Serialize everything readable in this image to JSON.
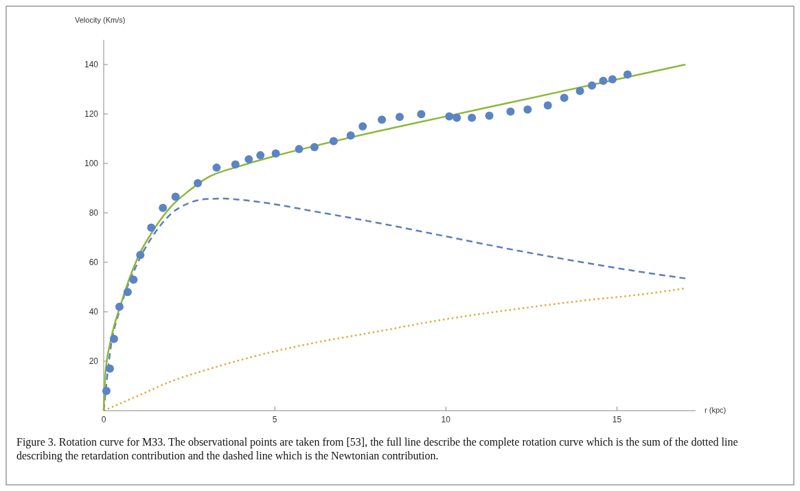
{
  "chart_data": {
    "type": "line",
    "ylabel": "Velocity (Km/s)",
    "xlabel": "r (kpc)",
    "xlim": [
      0,
      17.3
    ],
    "ylim": [
      0,
      150
    ],
    "xticks": [
      0,
      5,
      10,
      15
    ],
    "yticks": [
      20,
      40,
      60,
      80,
      100,
      120,
      140
    ],
    "grid": false,
    "annotations": [
      "Figure 3. Rotation curve for M33. The observational points are taken from [53], the full line describe the complete rotation curve which is the sum of the dotted line describing the retardation contribution and the dashed line which is the Newtonian contribution."
    ],
    "series": [
      {
        "line_style": "dotted",
        "marker": "none",
        "color": "#e3a93b",
        "x": [
          0,
          1,
          2,
          3,
          4,
          5,
          6,
          8,
          10,
          12,
          14,
          16,
          17
        ],
        "values": [
          0,
          6,
          12,
          16.5,
          20.5,
          24,
          27,
          32,
          37,
          41,
          44.5,
          47.5,
          49.5
        ]
      },
      {
        "line_style": "dashed",
        "marker": "none",
        "color": "#5b7fb8",
        "x": [
          0,
          0.2,
          0.5,
          1,
          1.5,
          2,
          2.5,
          3,
          3.5,
          4,
          5,
          6,
          8,
          10,
          12,
          14,
          16,
          17
        ],
        "values": [
          0,
          25,
          42,
          60,
          72,
          80,
          84,
          85.6,
          85.8,
          85.3,
          83.5,
          81,
          76,
          70.5,
          65,
          60,
          55.5,
          53.5
        ]
      },
      {
        "line_style": "solid",
        "marker": "none",
        "color": "#8cb83a",
        "x": [
          0,
          0.05,
          0.2,
          0.5,
          1,
          1.5,
          2,
          2.5,
          3,
          4,
          5,
          6,
          8,
          10,
          12,
          14,
          16,
          17
        ],
        "values": [
          0,
          15,
          28,
          43,
          62,
          74,
          83,
          89,
          94,
          99,
          103,
          106.5,
          113,
          119,
          125,
          131,
          137,
          140
        ]
      },
      {
        "type": "scatter",
        "marker": "circle",
        "color": "#5b84c4",
        "x": [
          0.08,
          0.18,
          0.3,
          0.46,
          0.7,
          0.87,
          1.07,
          1.39,
          1.73,
          2.1,
          2.75,
          3.3,
          3.85,
          4.24,
          4.58,
          5.03,
          5.71,
          6.16,
          6.72,
          7.22,
          7.57,
          8.13,
          8.65,
          9.28,
          10.1,
          10.32,
          10.76,
          11.27,
          11.89,
          12.39,
          12.98,
          13.46,
          13.92,
          14.27,
          14.6,
          14.87,
          15.31
        ],
        "values": [
          8,
          17,
          29,
          42,
          48,
          53,
          63,
          74,
          82,
          86.5,
          92,
          98.3,
          99.6,
          101.7,
          103.3,
          104,
          105.8,
          106.6,
          109,
          111.3,
          115,
          117.7,
          118.8,
          119.9,
          119,
          118.5,
          118.5,
          119.3,
          121,
          121.8,
          123.5,
          126.5,
          129.3,
          131.5,
          133.4,
          134,
          136
        ]
      }
    ]
  }
}
